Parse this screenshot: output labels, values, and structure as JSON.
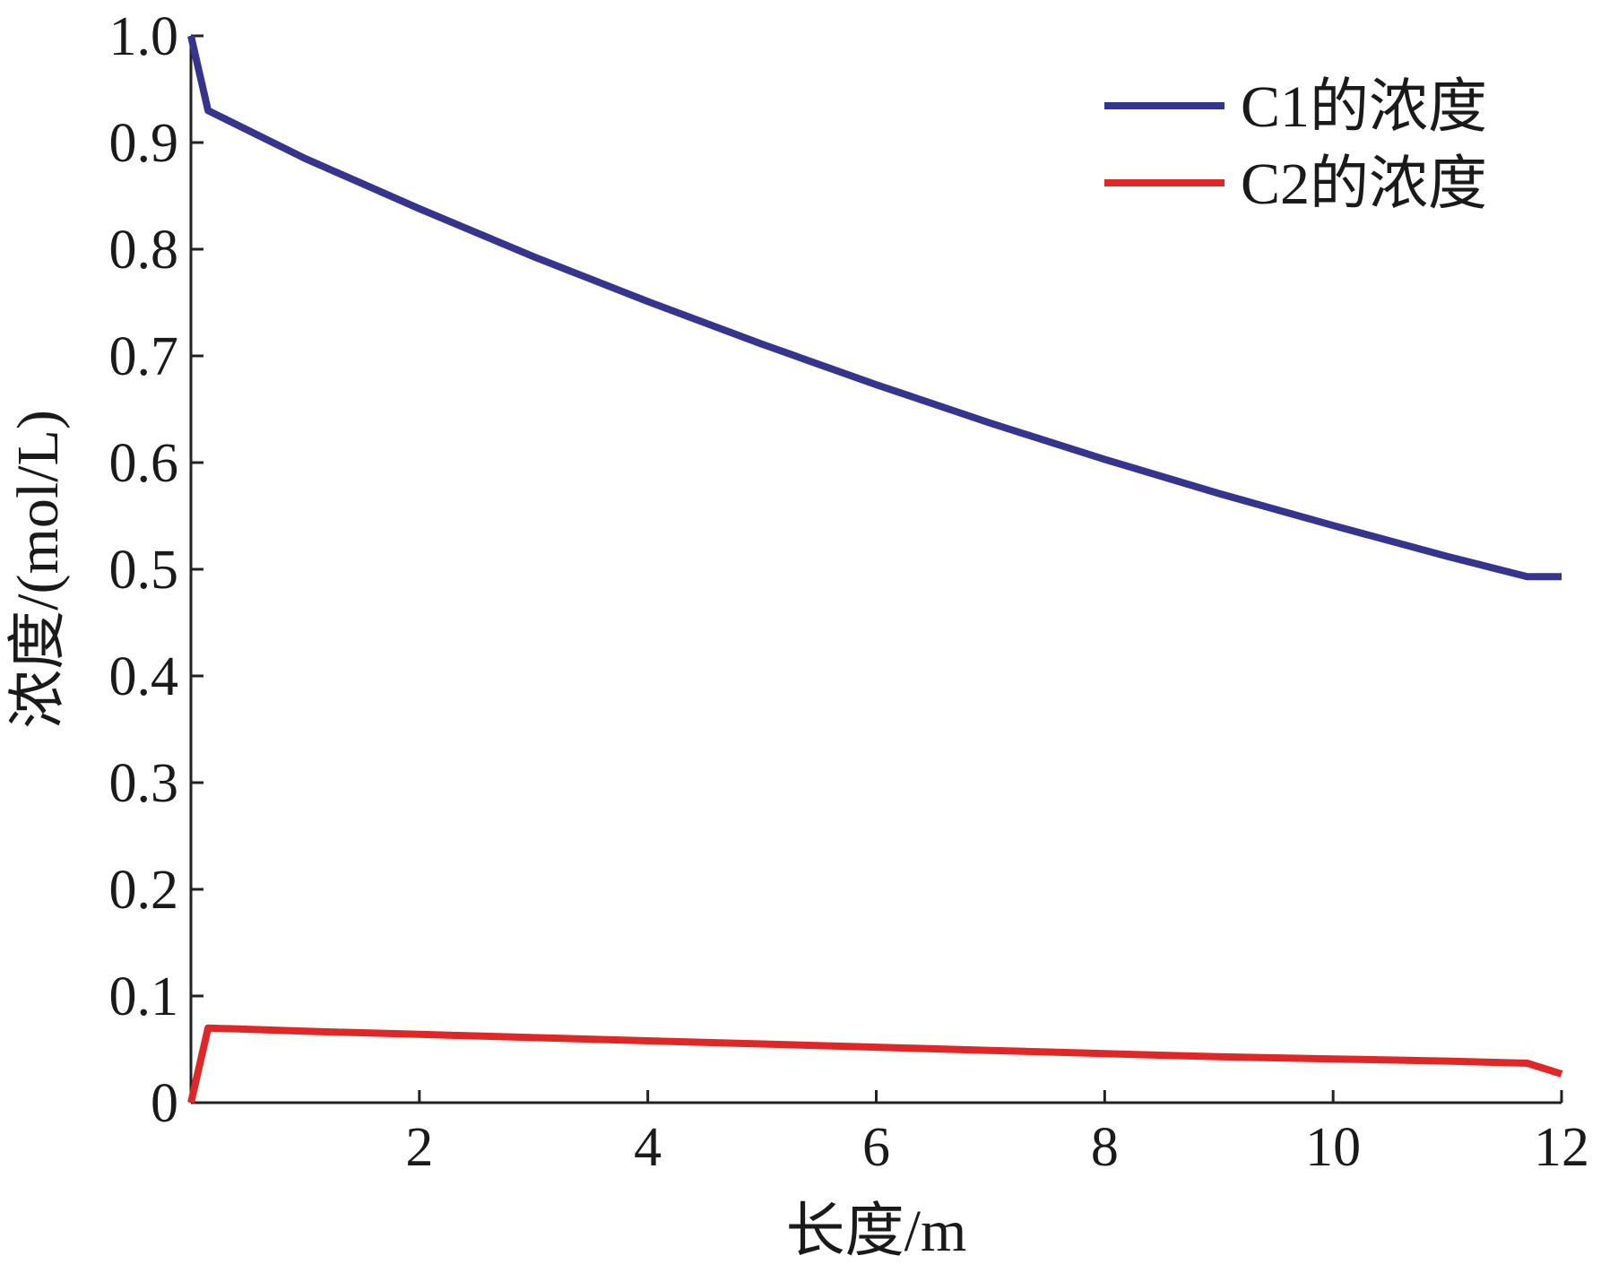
{
  "chart_data": {
    "type": "line",
    "xlabel": "长度/m",
    "ylabel": "浓度/(mol/L)",
    "xlim": [
      0,
      12
    ],
    "ylim": [
      0,
      1.0
    ],
    "x_ticks": [
      2,
      4,
      6,
      8,
      10,
      12
    ],
    "x_tick_labels": [
      "2",
      "4",
      "6",
      "8",
      "10",
      "12"
    ],
    "y_ticks": [
      0,
      0.1,
      0.2,
      0.3,
      0.4,
      0.5,
      0.6,
      0.7,
      0.8,
      0.9,
      1.0
    ],
    "y_tick_labels": [
      "0",
      "0.1",
      "0.2",
      "0.3",
      "0.4",
      "0.5",
      "0.6",
      "0.7",
      "0.8",
      "0.9",
      "1.0"
    ],
    "grid": false,
    "legend_position": "top-right",
    "series": [
      {
        "name": "C1的浓度",
        "color": "#35358f",
        "x": [
          0,
          0.15,
          1,
          2,
          3,
          4,
          5,
          6,
          7,
          8,
          9,
          10,
          11,
          11.7,
          12
        ],
        "y": [
          1.0,
          0.93,
          0.885,
          0.838,
          0.793,
          0.751,
          0.711,
          0.673,
          0.637,
          0.603,
          0.571,
          0.541,
          0.512,
          0.493,
          0.493
        ]
      },
      {
        "name": "C2的浓度",
        "color": "#e02626",
        "x": [
          0,
          0.15,
          1,
          2,
          3,
          4,
          5,
          6,
          7,
          8,
          9,
          10,
          11,
          11.7,
          12
        ],
        "y": [
          0,
          0.07,
          0.067,
          0.064,
          0.061,
          0.058,
          0.055,
          0.052,
          0.049,
          0.046,
          0.043,
          0.041,
          0.039,
          0.037,
          0.027
        ]
      }
    ]
  }
}
